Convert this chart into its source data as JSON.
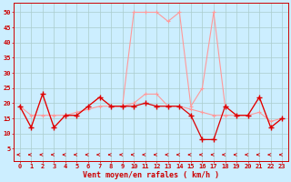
{
  "x": [
    0,
    1,
    2,
    3,
    4,
    5,
    6,
    7,
    8,
    9,
    10,
    11,
    12,
    13,
    14,
    15,
    16,
    17,
    18,
    19,
    20,
    21,
    22,
    23
  ],
  "line_gust": [
    19,
    12,
    23,
    12,
    16,
    16,
    19,
    22,
    19,
    19,
    50,
    50,
    50,
    47,
    50,
    19,
    25,
    50,
    19,
    16,
    16,
    22,
    12,
    15
  ],
  "line_mean1": [
    19,
    12,
    23,
    12,
    16,
    16,
    19,
    22,
    19,
    19,
    19,
    20,
    19,
    19,
    19,
    16,
    8,
    8,
    19,
    16,
    16,
    22,
    12,
    15
  ],
  "line_mean2": [
    19,
    16,
    16,
    16,
    16,
    17,
    18,
    19,
    19,
    19,
    20,
    23,
    23,
    19,
    19,
    18,
    17,
    16,
    16,
    16,
    16,
    17,
    14,
    15
  ],
  "background_color": "#cceeff",
  "grid_color": "#aacccc",
  "line_color_light": "#ff9999",
  "line_color_dark": "#dd0000",
  "arrow_color": "#cc0000",
  "xlabel": "Vent moyen/en rafales ( km/h )",
  "ylabel_ticks": [
    5,
    10,
    15,
    20,
    25,
    30,
    35,
    40,
    45,
    50
  ],
  "xlim": [
    -0.5,
    23.5
  ],
  "ylim": [
    1,
    53
  ],
  "figwidth": 3.2,
  "figheight": 2.0,
  "dpi": 100
}
